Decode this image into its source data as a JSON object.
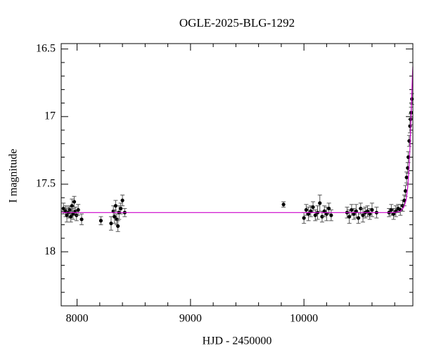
{
  "chart_data": {
    "type": "errorbar",
    "title": "OGLE-2025-BLG-1292",
    "xlabel": "HJD - 2450000",
    "ylabel": "I magnitude",
    "xlim": [
      7860,
      10960
    ],
    "ylim": [
      18.4,
      16.46
    ],
    "xticks": [
      8000,
      9000,
      10000
    ],
    "yticks": [
      16.5,
      17,
      17.5,
      18
    ],
    "xminorticks": [
      8200,
      8400,
      8600,
      8800,
      9200,
      9400,
      9600,
      9800,
      10200,
      10400,
      10600,
      10800
    ],
    "yminorticks": [
      16.6,
      16.7,
      16.8,
      16.9,
      17.1,
      17.2,
      17.3,
      17.4,
      17.6,
      17.7,
      17.8,
      17.9,
      18.1,
      18.2,
      18.3
    ],
    "color": "#000000",
    "x": [
      7880,
      7900,
      7910,
      7925,
      7935,
      7945,
      7955,
      7965,
      7975,
      7985,
      7995,
      8010,
      8040,
      8210,
      8300,
      8320,
      8330,
      8340,
      8350,
      8360,
      8370,
      8385,
      8400,
      8420,
      9820,
      10000,
      10020,
      10040,
      10060,
      10080,
      10100,
      10120,
      10140,
      10160,
      10180,
      10200,
      10220,
      10240,
      10380,
      10400,
      10420,
      10440,
      10460,
      10480,
      10500,
      10520,
      10540,
      10560,
      10580,
      10600,
      10640,
      10750,
      10770,
      10790,
      10810,
      10830,
      10850,
      10870,
      10885,
      10895,
      10905,
      10915,
      10920,
      10928,
      10935,
      10940,
      10945,
      10952
    ],
    "values": [
      17.68,
      17.7,
      17.73,
      17.71,
      17.69,
      17.74,
      17.66,
      17.72,
      17.63,
      17.7,
      17.73,
      17.69,
      17.76,
      17.77,
      17.79,
      17.7,
      17.74,
      17.66,
      17.76,
      17.81,
      17.71,
      17.68,
      17.62,
      17.71,
      17.65,
      17.75,
      17.69,
      17.72,
      17.7,
      17.67,
      17.73,
      17.71,
      17.64,
      17.74,
      17.7,
      17.72,
      17.68,
      17.73,
      17.71,
      17.74,
      17.69,
      17.72,
      17.7,
      17.75,
      17.68,
      17.73,
      17.71,
      17.7,
      17.72,
      17.69,
      17.71,
      17.71,
      17.69,
      17.72,
      17.7,
      17.68,
      17.69,
      17.66,
      17.62,
      17.55,
      17.45,
      17.38,
      17.3,
      17.18,
      17.07,
      17.02,
      16.97,
      16.87
    ],
    "errors": [
      0.04,
      0.04,
      0.05,
      0.04,
      0.03,
      0.04,
      0.05,
      0.04,
      0.04,
      0.03,
      0.04,
      0.04,
      0.04,
      0.03,
      0.05,
      0.04,
      0.05,
      0.04,
      0.04,
      0.04,
      0.05,
      0.04,
      0.04,
      0.03,
      0.02,
      0.04,
      0.04,
      0.05,
      0.04,
      0.04,
      0.04,
      0.05,
      0.06,
      0.04,
      0.04,
      0.05,
      0.04,
      0.04,
      0.04,
      0.05,
      0.04,
      0.04,
      0.05,
      0.04,
      0.04,
      0.05,
      0.04,
      0.04,
      0.04,
      0.05,
      0.04,
      0.03,
      0.04,
      0.04,
      0.04,
      0.03,
      0.04,
      0.04,
      0.04,
      0.04,
      0.04,
      0.04,
      0.04,
      0.04,
      0.05,
      0.04,
      0.04,
      0.04
    ],
    "model": {
      "color": "#cc00cc",
      "x": [
        7860,
        10800,
        10850,
        10880,
        10900,
        10915,
        10925,
        10935,
        10942,
        10948,
        10953,
        10957,
        10960
      ],
      "values": [
        17.71,
        17.71,
        17.7,
        17.67,
        17.62,
        17.52,
        17.4,
        17.22,
        17.05,
        16.9,
        16.78,
        16.68,
        16.63
      ]
    }
  }
}
